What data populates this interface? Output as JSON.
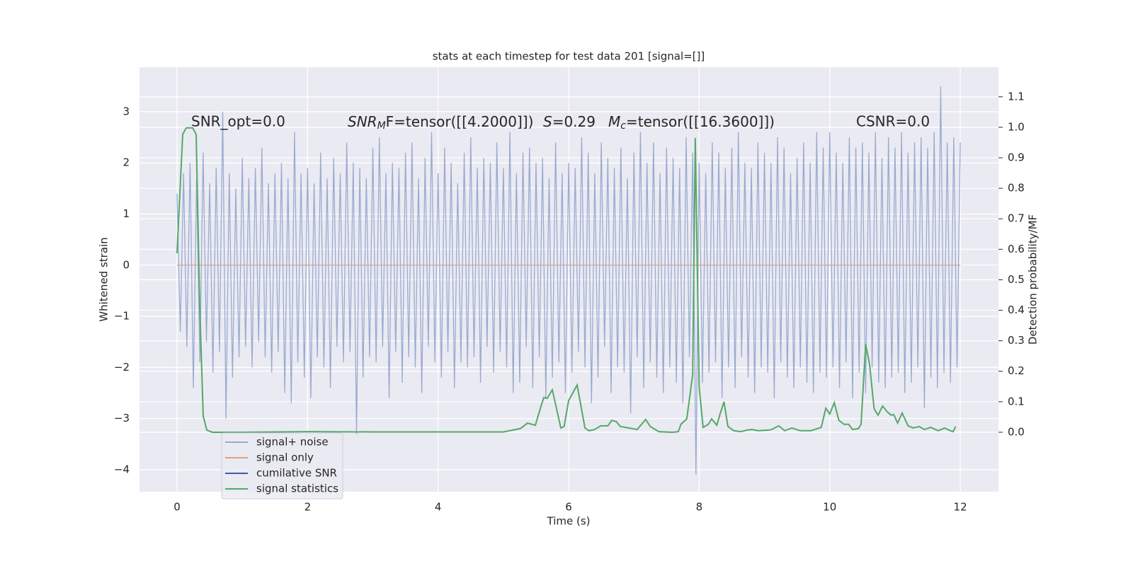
{
  "chart_data": {
    "type": "line",
    "title": "stats at each timestep for test data 201 [signal=[]]",
    "xlabel": "Time (s)",
    "ylabel": "Whitened strain",
    "y2label": "Detection probability/MF",
    "annotations": [
      {
        "text": "SNR_opt=0.0"
      },
      {
        "base": "SNR",
        "sub": "M",
        "rest": "F=tensor([[4.2000]])"
      },
      {
        "base": "S",
        "rest": "=0.29"
      },
      {
        "base": "M",
        "sub": "c",
        "rest": "=tensor([[16.3600]])"
      },
      {
        "text": "CSNR=0.0"
      }
    ],
    "xlim": [
      -0.575,
      12.585
    ],
    "ylim": [
      -4.43,
      3.87
    ],
    "y2lim": [
      -0.195,
      1.197
    ],
    "xticks": [
      0,
      2,
      4,
      6,
      8,
      10,
      12
    ],
    "yticks": [
      {
        "value": -4,
        "label": "−4"
      },
      {
        "value": -3,
        "label": "−3"
      },
      {
        "value": -2,
        "label": "−2"
      },
      {
        "value": -1,
        "label": "−1"
      },
      0,
      1,
      2,
      3
    ],
    "y2ticks": [
      {
        "value": 0,
        "label": "0.0"
      },
      0.1,
      0.2,
      0.3,
      0.4,
      0.5,
      0.6,
      0.7,
      0.8,
      0.9,
      {
        "value": 1,
        "label": "1.0"
      },
      1.1
    ],
    "grid": true,
    "legend": "lower left",
    "series": [
      {
        "name": "signal+ noise",
        "color": "#9aabd1",
        "x": [
          0,
          0.05,
          0.1,
          0.15,
          0.2,
          0.25,
          0.3,
          0.35,
          0.4,
          0.45,
          0.5,
          0.55,
          0.6,
          0.65,
          0.7,
          0.75,
          0.8,
          0.85,
          0.9,
          0.95,
          1,
          1.05,
          1.1,
          1.15,
          1.2,
          1.25,
          1.3,
          1.35,
          1.4,
          1.45,
          1.5,
          1.55,
          1.6,
          1.65,
          1.7,
          1.75,
          1.8,
          1.85,
          1.9,
          1.95,
          2,
          2.05,
          2.1,
          2.15,
          2.2,
          2.25,
          2.3,
          2.35,
          2.4,
          2.45,
          2.5,
          2.55,
          2.6,
          2.65,
          2.7,
          2.75,
          2.8,
          2.85,
          2.9,
          2.95,
          3,
          3.05,
          3.1,
          3.15,
          3.2,
          3.25,
          3.3,
          3.35,
          3.4,
          3.45,
          3.5,
          3.55,
          3.6,
          3.65,
          3.7,
          3.75,
          3.8,
          3.85,
          3.9,
          3.95,
          4,
          4.05,
          4.1,
          4.15,
          4.2,
          4.25,
          4.3,
          4.35,
          4.4,
          4.45,
          4.5,
          4.55,
          4.6,
          4.65,
          4.7,
          4.75,
          4.8,
          4.85,
          4.9,
          4.95,
          5,
          5.05,
          5.1,
          5.15,
          5.2,
          5.25,
          5.3,
          5.35,
          5.4,
          5.45,
          5.5,
          5.55,
          5.6,
          5.65,
          5.7,
          5.75,
          5.8,
          5.85,
          5.9,
          5.95,
          6,
          6.05,
          6.1,
          6.15,
          6.2,
          6.25,
          6.3,
          6.35,
          6.4,
          6.45,
          6.5,
          6.55,
          6.6,
          6.65,
          6.7,
          6.75,
          6.8,
          6.85,
          6.9,
          6.95,
          7,
          7.05,
          7.1,
          7.15,
          7.2,
          7.25,
          7.3,
          7.35,
          7.4,
          7.45,
          7.5,
          7.55,
          7.6,
          7.65,
          7.7,
          7.75,
          7.8,
          7.85,
          7.9,
          7.95,
          8,
          8.05,
          8.1,
          8.15,
          8.2,
          8.25,
          8.3,
          8.35,
          8.4,
          8.45,
          8.5,
          8.55,
          8.6,
          8.65,
          8.7,
          8.75,
          8.8,
          8.85,
          8.9,
          8.95,
          9,
          9.05,
          9.1,
          9.15,
          9.2,
          9.25,
          9.3,
          9.35,
          9.4,
          9.45,
          9.5,
          9.55,
          9.6,
          9.65,
          9.7,
          9.75,
          9.8,
          9.85,
          9.9,
          9.95,
          10,
          10.05,
          10.1,
          10.15,
          10.2,
          10.25,
          10.3,
          10.35,
          10.4,
          10.45,
          10.5,
          10.55,
          10.6,
          10.65,
          10.7,
          10.75,
          10.8,
          10.85,
          10.9,
          10.95,
          11,
          11.05,
          11.1,
          11.15,
          11.2,
          11.25,
          11.3,
          11.35,
          11.4,
          11.45,
          11.5,
          11.55,
          11.6,
          11.65,
          11.7,
          11.75,
          11.8,
          11.85,
          11.9,
          11.95,
          12
        ],
        "values": [
          1.4,
          -1.3,
          1.8,
          -1.6,
          2.0,
          -2.4,
          1.7,
          -1.9,
          2.2,
          -1.5,
          1.6,
          -2.1,
          1.9,
          -1.7,
          3.0,
          -3.0,
          1.8,
          -2.2,
          1.5,
          -1.8,
          2.1,
          -1.6,
          1.7,
          -2.0,
          1.9,
          -1.5,
          2.3,
          -1.8,
          1.6,
          -2.1,
          1.8,
          -1.7,
          2.0,
          -2.5,
          1.7,
          -2.7,
          2.6,
          -1.9,
          1.8,
          -2.2,
          1.9,
          -2.6,
          1.6,
          -1.8,
          2.2,
          -2.0,
          1.7,
          -2.4,
          2.1,
          -1.6,
          1.8,
          -1.9,
          2.4,
          -1.7,
          2.0,
          -3.3,
          1.9,
          -2.2,
          1.7,
          -1.8,
          2.3,
          -1.9,
          2.5,
          -1.6,
          1.8,
          -2.6,
          2.0,
          -1.7,
          1.9,
          -2.3,
          2.2,
          -1.8,
          2.4,
          -2.0,
          1.7,
          -2.5,
          2.1,
          -1.6,
          2.6,
          -1.9,
          1.8,
          -2.2,
          2.3,
          -1.7,
          2.0,
          -2.4,
          1.6,
          -1.9,
          2.2,
          -2.0,
          2.5,
          -1.8,
          1.9,
          -2.3,
          2.1,
          -1.6,
          2.0,
          -2.1,
          2.4,
          -1.7,
          1.9,
          -2.0,
          2.6,
          -2.5,
          1.8,
          -2.3,
          2.2,
          -1.6,
          2.3,
          -2.4,
          2.0,
          -1.8,
          2.1,
          -2.6,
          1.7,
          -2.2,
          2.4,
          -1.9,
          1.8,
          -2.5,
          2.0,
          -2.1,
          1.9,
          -1.7,
          2.5,
          -2.0,
          2.2,
          -2.7,
          1.8,
          -2.2,
          2.4,
          -1.6,
          2.1,
          -2.5,
          1.9,
          -2.0,
          2.3,
          -2.1,
          1.7,
          -2.9,
          2.2,
          -1.8,
          2.6,
          -2.4,
          2.0,
          -1.9,
          2.4,
          -2.2,
          1.8,
          -2.5,
          2.3,
          -2.0,
          2.1,
          -2.3,
          1.9,
          -2.7,
          2.5,
          -1.8,
          2.2,
          -4.1,
          2.0,
          -2.3,
          1.8,
          -2.1,
          2.4,
          -1.9,
          2.2,
          -2.6,
          1.9,
          -2.0,
          2.3,
          -2.4,
          2.6,
          -1.8,
          2.0,
          -2.2,
          1.9,
          -2.5,
          2.4,
          -2.0,
          2.2,
          -2.1,
          2.0,
          -2.6,
          2.5,
          -1.9,
          2.3,
          -2.2,
          1.8,
          -2.4,
          2.1,
          -2.0,
          2.4,
          -2.3,
          2.0,
          -2.5,
          2.6,
          -2.1,
          2.3,
          -2.2,
          2.6,
          -2.0,
          2.2,
          -2.4,
          2.0,
          -1.9,
          2.5,
          -2.6,
          2.3,
          -2.1,
          2.4,
          -2.5,
          2.2,
          -2.0,
          2.6,
          -2.3,
          2.1,
          -2.4,
          2.5,
          -2.2,
          2.3,
          -2.1,
          2.6,
          -2.5,
          2.2,
          -2.3,
          2.4,
          -2.0,
          2.5,
          -2.8,
          2.3,
          -2.2,
          2.6,
          -2.4,
          3.5,
          -2.1,
          2.4,
          -2.3,
          2.5,
          -2.0,
          2.4
        ]
      },
      {
        "name": "signal only",
        "color": "#e0a084",
        "x": [
          0,
          12
        ],
        "values": [
          0,
          0
        ]
      },
      {
        "name": "cumilative SNR",
        "color": "#3f5d9e",
        "x": [],
        "values": []
      },
      {
        "name": "signal statistics",
        "color": "#55a868",
        "axis": "y2",
        "x": [
          0,
          0.087,
          0.141,
          0.239,
          0.293,
          0.347,
          0.401,
          0.456,
          0.543,
          1,
          2,
          3,
          4,
          5,
          5.26,
          5.37,
          5.49,
          5.57,
          5.62,
          5.67,
          5.75,
          5.82,
          5.88,
          5.93,
          6.0,
          6.13,
          6.19,
          6.25,
          6.31,
          6.4,
          6.49,
          6.6,
          6.66,
          6.73,
          6.79,
          6.92,
          7.05,
          7.18,
          7.25,
          7.38,
          7.59,
          7.68,
          7.72,
          7.81,
          7.9,
          7.94,
          8.0,
          8.06,
          8.14,
          8.19,
          8.27,
          8.32,
          8.38,
          8.44,
          8.53,
          8.64,
          8.73,
          8.81,
          8.9,
          9.06,
          9.11,
          9.22,
          9.31,
          9.42,
          9.55,
          9.71,
          9.87,
          9.94,
          10.0,
          10.07,
          10.14,
          10.22,
          10.29,
          10.35,
          10.44,
          10.48,
          10.55,
          10.61,
          10.68,
          10.74,
          10.81,
          10.88,
          10.94,
          10.98,
          11.04,
          11.11,
          11.2,
          11.28,
          11.37,
          11.45,
          11.55,
          11.66,
          11.76,
          11.85,
          11.89,
          11.93
        ],
        "values": [
          0.587,
          0.977,
          0.998,
          0.998,
          0.977,
          0.419,
          0.053,
          0.007,
          0,
          0,
          0.002,
          0.001,
          0.001,
          0.001,
          0.012,
          0.03,
          0.023,
          0.081,
          0.114,
          0.111,
          0.139,
          0.072,
          0.014,
          0.019,
          0.104,
          0.155,
          0.084,
          0.014,
          0.005,
          0.009,
          0.021,
          0.021,
          0.039,
          0.035,
          0.019,
          0.014,
          0.009,
          0.042,
          0.019,
          0.002,
          0,
          0.002,
          0.026,
          0.044,
          0.188,
          0.965,
          0.146,
          0.016,
          0.026,
          0.044,
          0.023,
          0.06,
          0.1,
          0.019,
          0.005,
          0.002,
          0.007,
          0.009,
          0.005,
          0.007,
          0.009,
          0.021,
          0.005,
          0.014,
          0.005,
          0.005,
          0.016,
          0.079,
          0.06,
          0.097,
          0.039,
          0.026,
          0.026,
          0.009,
          0.012,
          0.026,
          0.288,
          0.223,
          0.077,
          0.056,
          0.086,
          0.067,
          0.056,
          0.058,
          0.03,
          0.063,
          0.021,
          0.014,
          0.019,
          0.009,
          0.016,
          0.005,
          0.014,
          0.005,
          0.002,
          0.019
        ]
      }
    ]
  }
}
